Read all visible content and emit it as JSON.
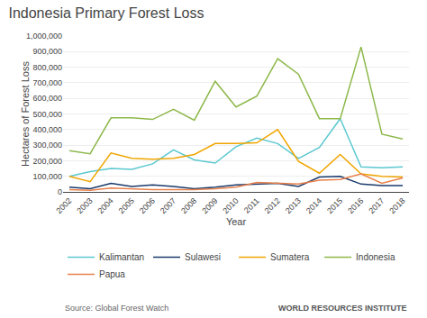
{
  "chart_data": {
    "type": "line",
    "title": "Indonesia Primary Forest Loss",
    "x_label": "Year",
    "y_label": "Hectares of Forest Loss",
    "x": [
      2002,
      2003,
      2004,
      2005,
      2006,
      2007,
      2008,
      2009,
      2010,
      2011,
      2012,
      2013,
      2014,
      2015,
      2016,
      2017,
      2018
    ],
    "series": [
      {
        "name": "Kalimantan",
        "color": "#5bc8d0",
        "values": [
          100000,
          130000,
          150000,
          145000,
          180000,
          270000,
          205000,
          185000,
          290000,
          345000,
          310000,
          215000,
          285000,
          470000,
          160000,
          155000,
          160000
        ]
      },
      {
        "name": "Sulawesi",
        "color": "#1a3a6b",
        "values": [
          30000,
          20000,
          55000,
          35000,
          45000,
          35000,
          20000,
          30000,
          45000,
          50000,
          55000,
          35000,
          95000,
          100000,
          50000,
          40000,
          40000
        ]
      },
      {
        "name": "Sumatera",
        "color": "#f0a500",
        "values": [
          100000,
          65000,
          250000,
          215000,
          210000,
          215000,
          240000,
          310000,
          310000,
          315000,
          400000,
          195000,
          120000,
          240000,
          115000,
          100000,
          95000
        ]
      },
      {
        "name": "Indonesia",
        "color": "#8db84a",
        "values": [
          265000,
          245000,
          475000,
          475000,
          465000,
          530000,
          460000,
          710000,
          545000,
          615000,
          855000,
          755000,
          470000,
          470000,
          930000,
          370000,
          340000
        ]
      },
      {
        "name": "Papua",
        "color": "#e8804a",
        "values": [
          15000,
          10000,
          25000,
          20000,
          15000,
          15000,
          15000,
          20000,
          30000,
          60000,
          55000,
          50000,
          75000,
          80000,
          115000,
          55000,
          90000
        ]
      }
    ],
    "xlim": [
      2001.7,
      2018.3
    ],
    "xticks": [
      2002,
      2003,
      2004,
      2005,
      2006,
      2007,
      2008,
      2009,
      2010,
      2011,
      2012,
      2013,
      2014,
      2015,
      2016,
      2017,
      2018
    ],
    "ylim": [
      0,
      1000000
    ],
    "yticks": [
      0,
      {
        "value": 100000,
        "label": "100,000"
      },
      {
        "value": 200000,
        "label": "200,000"
      },
      {
        "value": 300000,
        "label": "300,000"
      },
      {
        "value": 400000,
        "label": "400,000"
      },
      {
        "value": 500000,
        "label": "500,000"
      },
      {
        "value": 600000,
        "label": "600,000"
      },
      {
        "value": 700000,
        "label": "700,000"
      },
      {
        "value": 800000,
        "label": "800,000"
      },
      {
        "value": 900000,
        "label": "900,000"
      },
      {
        "value": 1000000,
        "label": "1,000,000"
      }
    ],
    "grid": true,
    "legend": "bottom",
    "annotations": [
      "Source: Global Forest Watch",
      "WORLD RESOURCES INSTITUTE"
    ]
  }
}
